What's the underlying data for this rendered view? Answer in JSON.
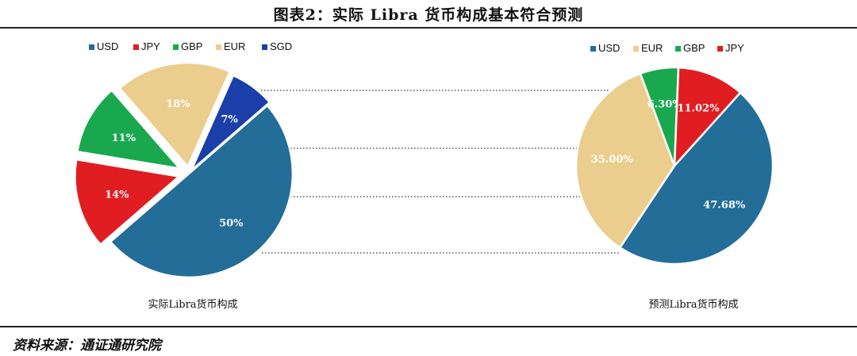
{
  "title": "图表2：实际 Libra 货币构成基本符合预测",
  "source": "资料来源：通证通研究院",
  "colors": {
    "USD": "#236d99",
    "JPY": "#e01e22",
    "GBP": "#1aa84f",
    "EUR": "#ebcd8e",
    "SGD": "#1a3fa8"
  },
  "chart_data": [
    {
      "type": "pie",
      "caption": "实际Libra货币构成",
      "legend": [
        "USD",
        "JPY",
        "GBP",
        "EUR",
        "SGD"
      ],
      "slices": [
        {
          "name": "USD",
          "value": 50,
          "label": "50%"
        },
        {
          "name": "JPY",
          "value": 14,
          "label": "14%"
        },
        {
          "name": "GBP",
          "value": 11,
          "label": "11%"
        },
        {
          "name": "EUR",
          "value": 18,
          "label": "18%"
        },
        {
          "name": "SGD",
          "value": 7,
          "label": "7%"
        }
      ]
    },
    {
      "type": "pie",
      "caption": "预测Libra货币构成",
      "legend": [
        "USD",
        "EUR",
        "GBP",
        "JPY"
      ],
      "slices": [
        {
          "name": "USD",
          "value": 47.68,
          "label": "47.68%"
        },
        {
          "name": "EUR",
          "value": 35.0,
          "label": "35.00%"
        },
        {
          "name": "GBP",
          "value": 6.3,
          "label": "6.30%"
        },
        {
          "name": "JPY",
          "value": 11.02,
          "label": "11.02%"
        }
      ]
    }
  ]
}
